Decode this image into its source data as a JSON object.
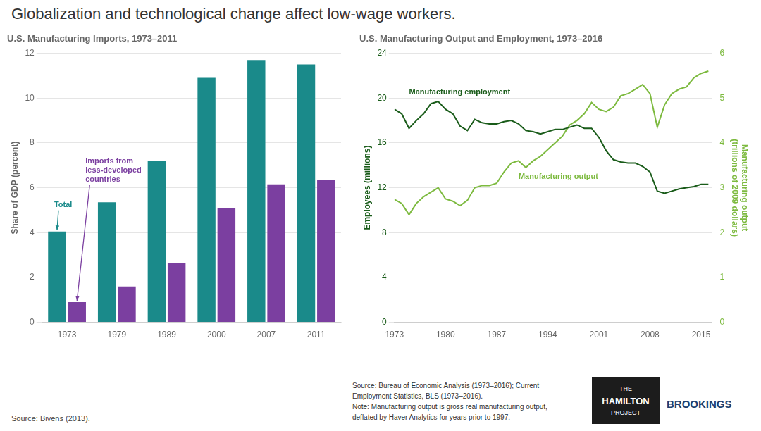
{
  "title": "Globalization and technological change affect low-wage workers.",
  "chart_data": [
    {
      "type": "bar",
      "title": "U.S. Manufacturing Imports, 1973–2011",
      "categories": [
        "1973",
        "1979",
        "1989",
        "2000",
        "2007",
        "2011"
      ],
      "series": [
        {
          "name": "Total",
          "color": "#1a8a8a",
          "values": [
            4.05,
            5.35,
            7.2,
            10.9,
            11.7,
            11.5
          ]
        },
        {
          "name": "Imports from\nless-developed\ncountries",
          "color": "#7b3fa0",
          "values": [
            0.9,
            1.6,
            2.65,
            5.1,
            6.15,
            6.35
          ]
        }
      ],
      "y_label": "Share of GDP (percent)",
      "ylim": [
        0,
        12
      ],
      "yticks": [
        0,
        2,
        4,
        6,
        8,
        10,
        12
      ],
      "grid": true,
      "source": "Source: Bivens (2013)."
    },
    {
      "type": "line",
      "title": "U.S. Manufacturing Output and Employment, 1973–2016",
      "x": [
        1973,
        1974,
        1975,
        1976,
        1977,
        1978,
        1979,
        1980,
        1981,
        1982,
        1983,
        1984,
        1985,
        1986,
        1987,
        1988,
        1989,
        1990,
        1991,
        1992,
        1993,
        1994,
        1995,
        1996,
        1997,
        1998,
        1999,
        2000,
        2001,
        2002,
        2003,
        2004,
        2005,
        2006,
        2007,
        2008,
        2009,
        2010,
        2011,
        2012,
        2013,
        2014,
        2015,
        2016
      ],
      "series": [
        {
          "name": "Manufacturing employment",
          "color": "#1a5c1a",
          "values": [
            19.0,
            18.6,
            17.3,
            18.0,
            18.6,
            19.5,
            19.7,
            19.0,
            18.6,
            17.5,
            17.1,
            18.1,
            17.8,
            17.7,
            17.7,
            17.9,
            18.0,
            17.7,
            17.1,
            17.0,
            16.8,
            17.0,
            17.2,
            17.2,
            17.4,
            17.6,
            17.3,
            17.3,
            16.5,
            15.3,
            14.5,
            14.3,
            14.2,
            14.2,
            13.9,
            13.4,
            11.7,
            11.5,
            11.7,
            11.9,
            12.0,
            12.1,
            12.3,
            12.3
          ]
        },
        {
          "name": "Manufacturing output",
          "color": "#7dba3f",
          "axis": "y2",
          "values": [
            2.74,
            2.65,
            2.4,
            2.65,
            2.8,
            2.9,
            3.0,
            2.75,
            2.7,
            2.6,
            2.72,
            3.0,
            3.05,
            3.05,
            3.1,
            3.35,
            3.55,
            3.6,
            3.45,
            3.6,
            3.7,
            3.85,
            4.0,
            4.15,
            4.4,
            4.5,
            4.65,
            4.9,
            4.75,
            4.7,
            4.8,
            5.05,
            5.1,
            5.2,
            5.3,
            5.1,
            4.35,
            4.85,
            5.1,
            5.2,
            5.25,
            5.45,
            5.55,
            5.6
          ]
        }
      ],
      "y_label": "Employees (millions)",
      "y2_label": "Manufacturing output\n(trillions of 2009 dollars)",
      "xlim": [
        1973,
        2016.5
      ],
      "xticks": [
        1973,
        1980,
        1987,
        1994,
        2001,
        2008,
        2015
      ],
      "ylim": [
        0,
        24
      ],
      "yticks": [
        0,
        4,
        8,
        12,
        16,
        20,
        24
      ],
      "y2lim": [
        0,
        6
      ],
      "y2ticks": [
        0,
        1,
        2,
        3,
        4,
        5,
        6
      ],
      "grid": true,
      "notes": [
        "Source: Bureau of Economic Analysis (1973–2016); Current",
        "Employment Statistics, BLS (1973–2016).",
        "Note: Manufacturing output is gross real manufacturing output,",
        "deflated by Haver Analytics for years prior to 1997."
      ]
    }
  ],
  "logo": [
    "THE",
    "HAMILTON",
    "PROJECT"
  ],
  "brand": "BROOKINGS"
}
